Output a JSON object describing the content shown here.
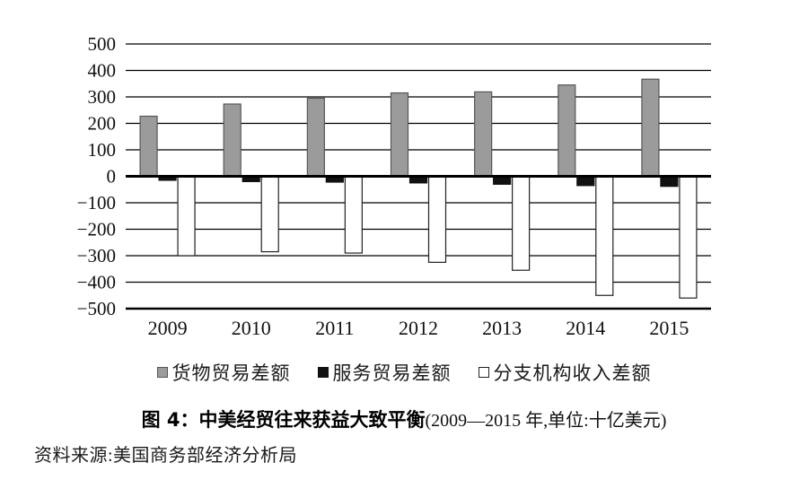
{
  "figure": {
    "title_main": "图 4：中美经贸往来获益大致平衡",
    "title_paren": "(2009—2015 年,单位:十亿美元)",
    "source": "资料来源:美国商务部经济分析局"
  },
  "chart_data": {
    "type": "bar",
    "title": "中美经贸往来获益大致平衡",
    "subtitle": "2009—2015 年,单位:十亿美元",
    "categories": [
      "2009",
      "2010",
      "2011",
      "2012",
      "2013",
      "2014",
      "2015"
    ],
    "series": [
      {
        "name": "货物贸易差额",
        "color": "#9b9b9b",
        "border": "#565656",
        "values": [
          227,
          273,
          295,
          315,
          319,
          345,
          367
        ]
      },
      {
        "name": "服务贸易差额",
        "color": "#111111",
        "border": "#111111",
        "values": [
          -15,
          -20,
          -22,
          -25,
          -30,
          -35,
          -38
        ]
      },
      {
        "name": "分支机构收入差额",
        "color": "#ffffff",
        "border": "#222222",
        "values": [
          -300,
          -285,
          -290,
          -325,
          -355,
          -450,
          -460
        ]
      }
    ],
    "xlabel": "",
    "ylabel": "",
    "ylim": [
      -500,
      500
    ],
    "ytick_step": 100,
    "grid": true,
    "legend_position": "bottom",
    "source": "美国商务部经济分析局"
  }
}
